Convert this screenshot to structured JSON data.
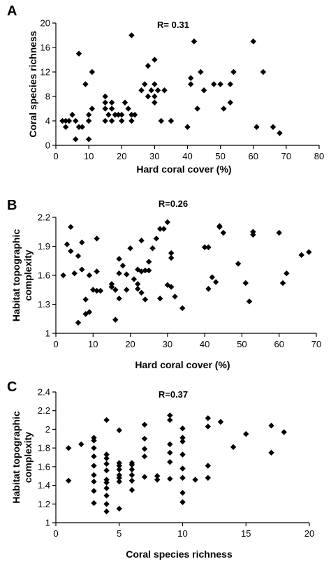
{
  "chart_data": [
    {
      "type": "scatter",
      "panel": "A",
      "annotation": "R= 0.31",
      "xlabel": "Hard coral cover (%)",
      "ylabel": "Coral species richness",
      "xlim": [
        0,
        80
      ],
      "ylim": [
        0,
        20
      ],
      "xticks": [
        0,
        10,
        20,
        30,
        40,
        50,
        60,
        70,
        80
      ],
      "yticks": [
        0,
        4,
        8,
        12,
        16,
        20
      ],
      "grid": false,
      "points": [
        [
          2,
          4
        ],
        [
          3,
          3
        ],
        [
          3,
          4
        ],
        [
          4,
          4
        ],
        [
          5,
          5
        ],
        [
          6,
          1
        ],
        [
          6,
          4
        ],
        [
          7,
          3
        ],
        [
          7,
          15
        ],
        [
          8,
          3
        ],
        [
          9,
          10
        ],
        [
          10,
          1
        ],
        [
          10,
          4
        ],
        [
          10,
          5
        ],
        [
          11,
          6
        ],
        [
          11,
          12
        ],
        [
          15,
          4
        ],
        [
          15,
          6
        ],
        [
          15,
          7
        ],
        [
          15,
          8
        ],
        [
          16,
          5
        ],
        [
          17,
          6
        ],
        [
          17,
          7
        ],
        [
          17,
          4
        ],
        [
          18,
          5
        ],
        [
          19,
          5
        ],
        [
          20,
          4
        ],
        [
          20,
          5
        ],
        [
          21,
          7
        ],
        [
          22,
          6
        ],
        [
          23,
          5
        ],
        [
          23,
          4
        ],
        [
          23,
          18
        ],
        [
          24,
          5
        ],
        [
          26,
          9
        ],
        [
          27,
          10
        ],
        [
          28,
          13
        ],
        [
          28,
          8
        ],
        [
          29,
          9
        ],
        [
          30,
          7
        ],
        [
          30,
          8
        ],
        [
          30,
          10
        ],
        [
          30,
          14
        ],
        [
          31,
          9
        ],
        [
          32,
          4
        ],
        [
          33,
          9
        ],
        [
          35,
          4
        ],
        [
          40,
          3
        ],
        [
          41,
          10
        ],
        [
          41,
          11
        ],
        [
          42,
          17
        ],
        [
          43,
          6
        ],
        [
          44,
          12
        ],
        [
          45,
          9
        ],
        [
          48,
          10
        ],
        [
          50,
          10
        ],
        [
          51,
          6
        ],
        [
          53,
          7
        ],
        [
          53,
          10
        ],
        [
          54,
          12
        ],
        [
          60,
          17
        ],
        [
          61,
          3
        ],
        [
          63,
          12
        ],
        [
          66,
          3
        ],
        [
          68,
          2
        ]
      ]
    },
    {
      "type": "scatter",
      "panel": "B",
      "annotation": "R=0.26",
      "xlabel": "Hard coral cover (%)",
      "ylabel": "Habitat topographic complexity",
      "xlim": [
        0,
        70
      ],
      "ylim": [
        1,
        2.2
      ],
      "xticks": [
        0,
        10,
        20,
        30,
        40,
        50,
        60,
        70
      ],
      "yticks": [
        "1",
        "1.3",
        "1.6",
        "1.9",
        "2.2"
      ],
      "grid": false,
      "points": [
        [
          2,
          1.6
        ],
        [
          3,
          1.92
        ],
        [
          4,
          2.1
        ],
        [
          4,
          1.85
        ],
        [
          5,
          1.62
        ],
        [
          6,
          1.8
        ],
        [
          6,
          1.11
        ],
        [
          7,
          1.94
        ],
        [
          7,
          1.66
        ],
        [
          8,
          1.35
        ],
        [
          8,
          1.2
        ],
        [
          9,
          1.22
        ],
        [
          9,
          1.6
        ],
        [
          10,
          1.45
        ],
        [
          11,
          1.44
        ],
        [
          11,
          1.98
        ],
        [
          11,
          1.64
        ],
        [
          12,
          1.44
        ],
        [
          15,
          1.51
        ],
        [
          15,
          1.48
        ],
        [
          15,
          1.48
        ],
        [
          16,
          1.14
        ],
        [
          16,
          1.45
        ],
        [
          17,
          1.77
        ],
        [
          17,
          1.62
        ],
        [
          17,
          1.36
        ],
        [
          18,
          1.7
        ],
        [
          19,
          1.45
        ],
        [
          19,
          1.61
        ],
        [
          20,
          1.88
        ],
        [
          21,
          1.56
        ],
        [
          22,
          1.51
        ],
        [
          22,
          1.46
        ],
        [
          22,
          1.66
        ],
        [
          23,
          1.96
        ],
        [
          23,
          1.64
        ],
        [
          23,
          1.42
        ],
        [
          24,
          1.65
        ],
        [
          24,
          1.35
        ],
        [
          25,
          1.74
        ],
        [
          25,
          1.65
        ],
        [
          26,
          1.88
        ],
        [
          27,
          1.98
        ],
        [
          28,
          2.08
        ],
        [
          28,
          1.36
        ],
        [
          29,
          2.08
        ],
        [
          30,
          2.15
        ],
        [
          30,
          1.5
        ],
        [
          31,
          1.83
        ],
        [
          31,
          1.78
        ],
        [
          31,
          1.48
        ],
        [
          32,
          1.38
        ],
        [
          34,
          1.26
        ],
        [
          40,
          1.89
        ],
        [
          41,
          1.89
        ],
        [
          41,
          1.46
        ],
        [
          42,
          1.58
        ],
        [
          43,
          1.53
        ],
        [
          44,
          2.11
        ],
        [
          44,
          2.1
        ],
        [
          45,
          2.04
        ],
        [
          49,
          1.72
        ],
        [
          51,
          1.52
        ],
        [
          52,
          1.33
        ],
        [
          53,
          2.05
        ],
        [
          53,
          2.02
        ],
        [
          60,
          2.04
        ],
        [
          61,
          1.52
        ],
        [
          62,
          1.62
        ],
        [
          66,
          1.81
        ],
        [
          68,
          1.84
        ]
      ]
    },
    {
      "type": "scatter",
      "panel": "C",
      "annotation": "R=0.37",
      "xlabel": "Coral species richness",
      "ylabel": "Habitat topographic complexity",
      "xlim": [
        0,
        20
      ],
      "ylim": [
        1,
        2.4
      ],
      "xticks": [
        0,
        5,
        10,
        15,
        20
      ],
      "yticks": [
        "1",
        "1.2",
        "1.4",
        "1.6",
        "1.8",
        "2",
        "2.2",
        "2.4"
      ],
      "grid": false,
      "points": [
        [
          1,
          1.8
        ],
        [
          1,
          1.45
        ],
        [
          2,
          1.84
        ],
        [
          3,
          1.91
        ],
        [
          3,
          1.88
        ],
        [
          3,
          1.8
        ],
        [
          3,
          1.71
        ],
        [
          3,
          1.61
        ],
        [
          3,
          1.51
        ],
        [
          3,
          1.44
        ],
        [
          3,
          1.34
        ],
        [
          3,
          1.21
        ],
        [
          4,
          2.1
        ],
        [
          4,
          1.73
        ],
        [
          4,
          1.69
        ],
        [
          4,
          1.63
        ],
        [
          4,
          1.56
        ],
        [
          4,
          1.46
        ],
        [
          4,
          1.43
        ],
        [
          4,
          1.37
        ],
        [
          4,
          1.29
        ],
        [
          4,
          1.2
        ],
        [
          4,
          1.12
        ],
        [
          5,
          1.99
        ],
        [
          5,
          1.64
        ],
        [
          5,
          1.61
        ],
        [
          5,
          1.57
        ],
        [
          5,
          1.51
        ],
        [
          5,
          1.48
        ],
        [
          5,
          1.44
        ],
        [
          5,
          1.15
        ],
        [
          6,
          1.64
        ],
        [
          6,
          1.62
        ],
        [
          6,
          1.57
        ],
        [
          6,
          1.51
        ],
        [
          6,
          1.45
        ],
        [
          6,
          1.35
        ],
        [
          7,
          2.05
        ],
        [
          7,
          1.9
        ],
        [
          7,
          1.79
        ],
        [
          7,
          1.71
        ],
        [
          7,
          1.49
        ],
        [
          8,
          1.5
        ],
        [
          8,
          1.46
        ],
        [
          9,
          2.15
        ],
        [
          9,
          2.1
        ],
        [
          9,
          1.84
        ],
        [
          9,
          1.75
        ],
        [
          9,
          1.65
        ],
        [
          9,
          1.47
        ],
        [
          10,
          2.01
        ],
        [
          10,
          1.91
        ],
        [
          10,
          1.87
        ],
        [
          10,
          1.73
        ],
        [
          10,
          1.58
        ],
        [
          10,
          1.48
        ],
        [
          10,
          1.32
        ],
        [
          10,
          1.22
        ],
        [
          11,
          1.46
        ],
        [
          12,
          2.12
        ],
        [
          12,
          2.03
        ],
        [
          12,
          1.61
        ],
        [
          12,
          1.48
        ],
        [
          13,
          2.08
        ],
        [
          14,
          1.81
        ],
        [
          15,
          1.95
        ],
        [
          17,
          2.04
        ],
        [
          17,
          1.75
        ],
        [
          18,
          1.97
        ]
      ]
    }
  ]
}
